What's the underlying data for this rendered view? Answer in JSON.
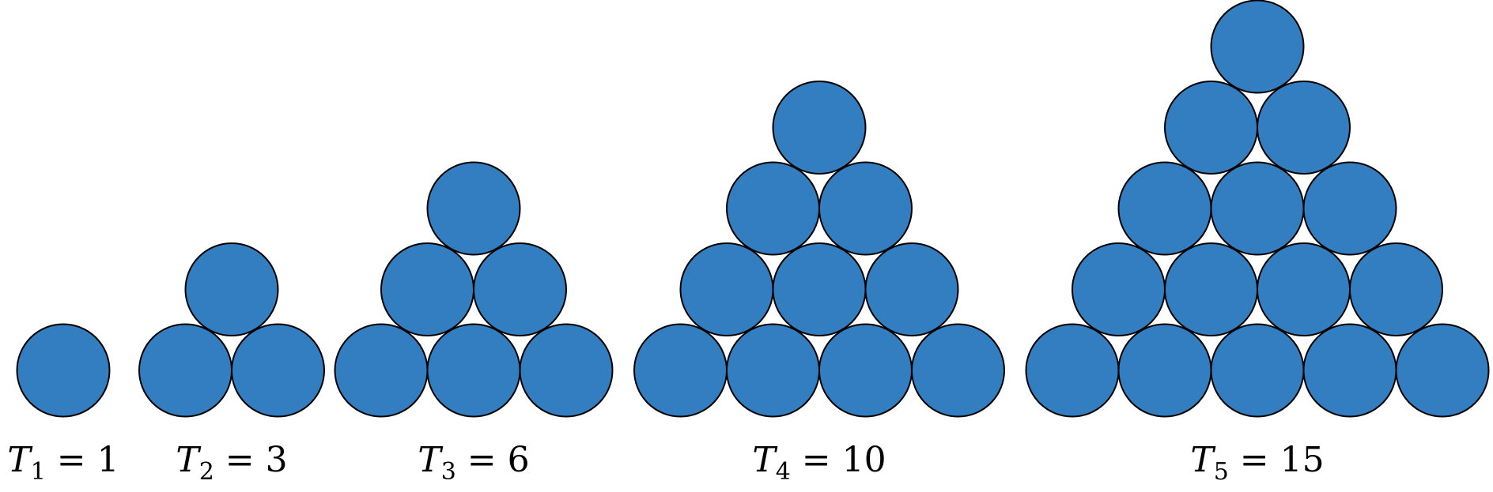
{
  "colors": {
    "dot_fill": "#337EC1",
    "dot_stroke": "#000000",
    "label_text": "#000000"
  },
  "triangles": [
    {
      "symbol": "T",
      "index": "1",
      "value": "1",
      "rows": 1
    },
    {
      "symbol": "T",
      "index": "2",
      "value": "3",
      "rows": 2
    },
    {
      "symbol": "T",
      "index": "3",
      "value": "6",
      "rows": 3
    },
    {
      "symbol": "T",
      "index": "4",
      "value": "10",
      "rows": 4
    },
    {
      "symbol": "T",
      "index": "5",
      "value": "15",
      "rows": 5
    }
  ]
}
